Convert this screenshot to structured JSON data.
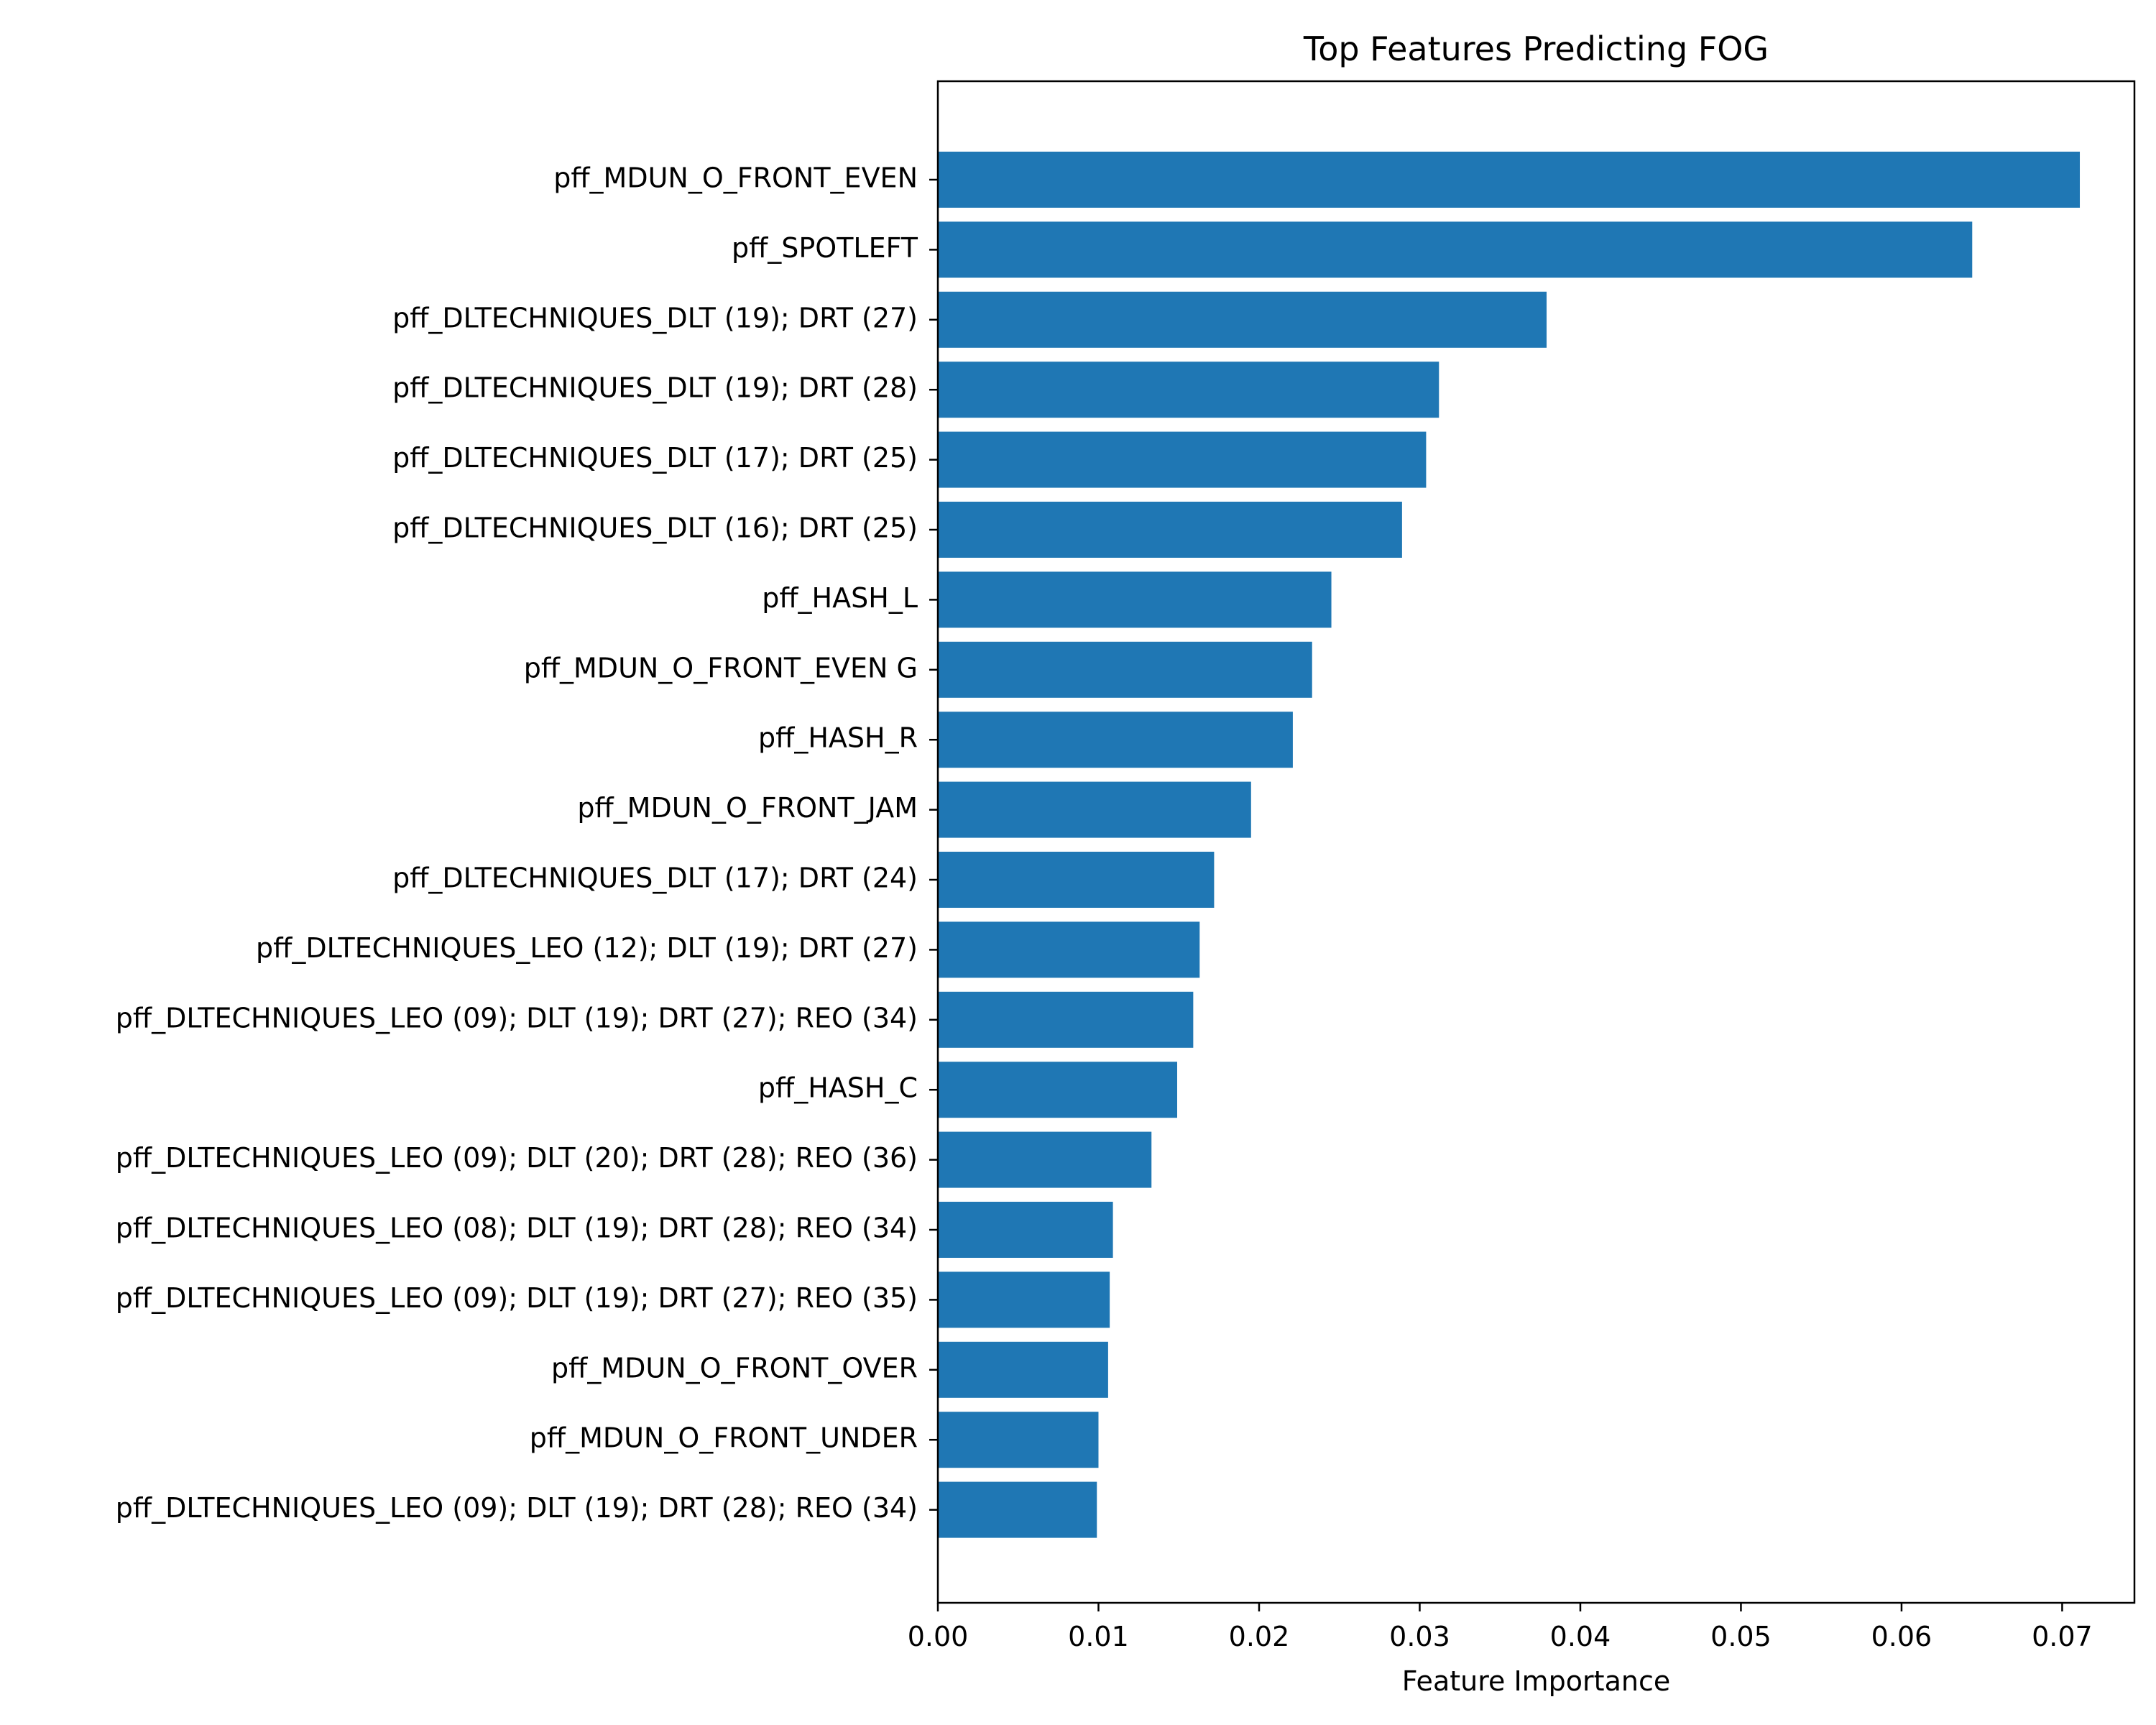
{
  "chart_data": {
    "type": "bar",
    "orientation": "horizontal",
    "title": "Top Features Predicting FOG",
    "xlabel": "Feature Importance",
    "ylabel": "",
    "xlim": [
      0,
      0.0745
    ],
    "xticks": [
      0.0,
      0.01,
      0.02,
      0.03,
      0.04,
      0.05,
      0.06,
      0.07
    ],
    "xtick_labels": [
      "0.00",
      "0.01",
      "0.02",
      "0.03",
      "0.04",
      "0.05",
      "0.06",
      "0.07"
    ],
    "grid": false,
    "legend": "none",
    "bar_color": "#1f77b4",
    "categories": [
      "pff_MDUN_O_FRONT_EVEN",
      "pff_SPOTLEFT",
      "pff_DLTECHNIQUES_DLT (19); DRT (27)",
      "pff_DLTECHNIQUES_DLT (19); DRT (28)",
      "pff_DLTECHNIQUES_DLT (17); DRT (25)",
      "pff_DLTECHNIQUES_DLT (16); DRT (25)",
      "pff_HASH_L",
      "pff_MDUN_O_FRONT_EVEN G",
      "pff_HASH_R",
      "pff_MDUN_O_FRONT_JAM",
      "pff_DLTECHNIQUES_DLT (17); DRT (24)",
      "pff_DLTECHNIQUES_LEO (12); DLT (19); DRT (27)",
      "pff_DLTECHNIQUES_LEO (09); DLT (19); DRT (27); REO (34)",
      "pff_HASH_C",
      "pff_DLTECHNIQUES_LEO (09); DLT (20); DRT (28); REO (36)",
      "pff_DLTECHNIQUES_LEO (08); DLT (19); DRT (28); REO (34)",
      "pff_DLTECHNIQUES_LEO (09); DLT (19); DRT (27); REO (35)",
      "pff_MDUN_O_FRONT_OVER",
      "pff_MDUN_O_FRONT_UNDER",
      "pff_DLTECHNIQUES_LEO (09); DLT (19); DRT (28); REO (34)"
    ],
    "values": [
      0.0711,
      0.0644,
      0.0379,
      0.0312,
      0.0304,
      0.0289,
      0.0245,
      0.0233,
      0.0221,
      0.0195,
      0.0172,
      0.0163,
      0.0159,
      0.0149,
      0.0133,
      0.0109,
      0.0107,
      0.0106,
      0.01,
      0.0099
    ]
  }
}
